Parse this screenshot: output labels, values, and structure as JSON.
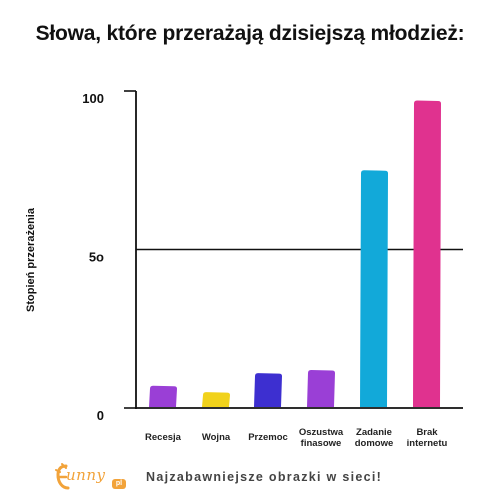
{
  "chart_data": {
    "type": "bar",
    "title": "Słowa, które przerażają dzisiejszą młodzież:",
    "ylabel": "Stopień przerażenia",
    "xlabel": "",
    "ylim": [
      0,
      100
    ],
    "yticks": [
      {
        "value": 0,
        "label": "0"
      },
      {
        "value": 50,
        "label": "5o"
      },
      {
        "value": 100,
        "label": "100"
      }
    ],
    "categories": [
      [
        "Recesja"
      ],
      [
        "Wojna"
      ],
      [
        "Przemoc"
      ],
      [
        "Oszustwa",
        "finasowe"
      ],
      [
        "Zadanie",
        "domowe"
      ],
      [
        "Brak",
        "internetu"
      ]
    ],
    "values": [
      7,
      5,
      11,
      12,
      75,
      97
    ],
    "colors": [
      "#9a3fd6",
      "#f1d21b",
      "#3d2fd0",
      "#9a3fd6",
      "#12a9d9",
      "#e0328f"
    ],
    "gridlines": [
      50
    ],
    "grid": false
  },
  "footer": {
    "logo_text": "unny",
    "logo_badge": "pl",
    "tagline": "Najzabawniejsze obrazki w sieci!"
  }
}
